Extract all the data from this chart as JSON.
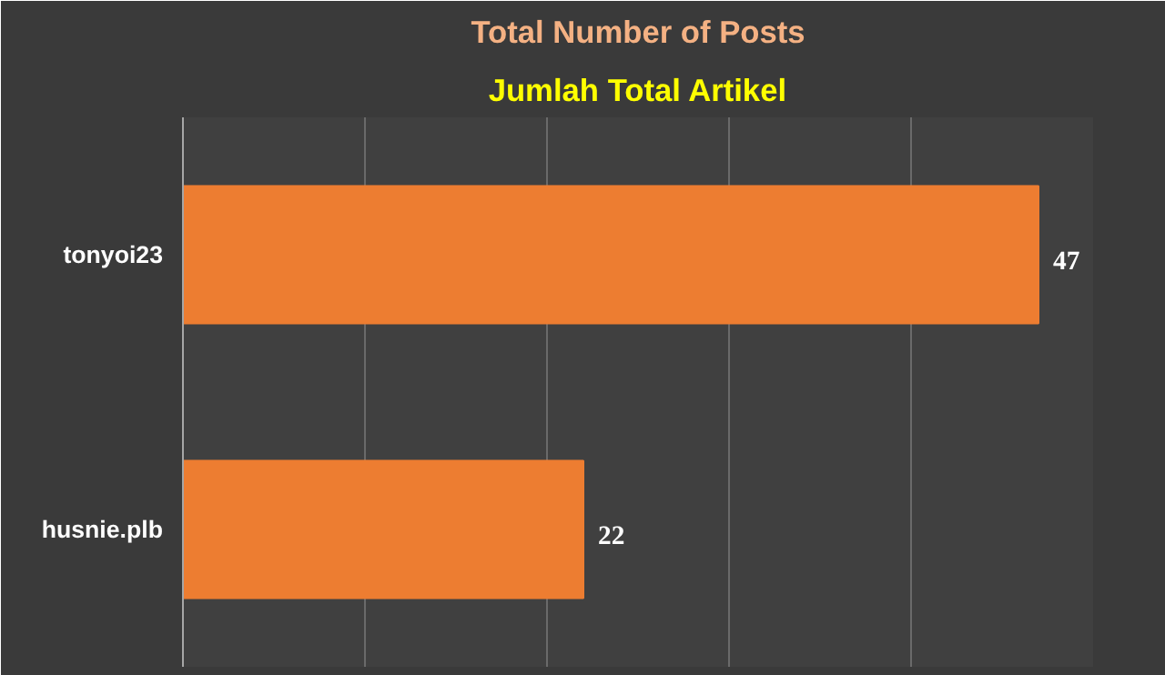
{
  "chart_data": {
    "type": "bar",
    "title": "Total Number of Posts",
    "subtitle": "Jumlah Total Artikel",
    "orientation": "horizontal",
    "categories": [
      "tonyoi23",
      "husnie.plb"
    ],
    "values": [
      47,
      22
    ],
    "color": "#ed7d31",
    "xlim": [
      0,
      50
    ],
    "xticks": [
      {
        "value": 0,
        "label": null
      },
      {
        "value": 10,
        "label": null
      },
      {
        "value": 20,
        "label": null
      },
      {
        "value": 30,
        "label": null
      },
      {
        "value": 40,
        "label": null
      },
      {
        "value": 50,
        "label": null
      }
    ],
    "tick_labels": "y",
    "grid": "x",
    "data_labels": true
  }
}
